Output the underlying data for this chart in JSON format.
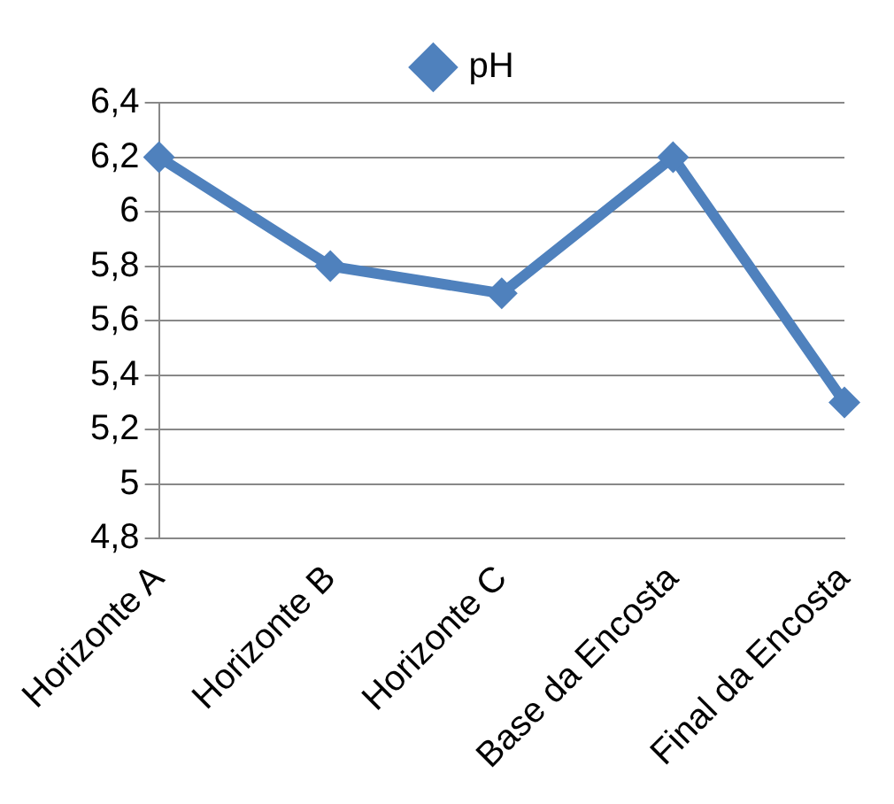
{
  "chart_data": {
    "type": "line",
    "categories": [
      "Horizonte A",
      "Horizonte B",
      "Horizonte C",
      "Base da Encosta",
      "Final da Encosta"
    ],
    "series": [
      {
        "name": "pH",
        "color": "#4f81bd",
        "values": [
          6.2,
          5.8,
          5.7,
          6.2,
          5.3
        ]
      }
    ],
    "ylim": [
      4.8,
      6.4
    ],
    "yticks": [
      {
        "value": 4.8,
        "label": "4,8"
      },
      5,
      {
        "value": 5.2,
        "label": "5,2"
      },
      {
        "value": 5.4,
        "label": "5,4"
      },
      {
        "value": 5.6,
        "label": "5,6"
      },
      {
        "value": 5.8,
        "label": "5,8"
      },
      6,
      {
        "value": 6.2,
        "label": "6,2"
      },
      {
        "value": 6.4,
        "label": "6,4"
      }
    ],
    "grid": "y",
    "legend": "top",
    "marker": "diamond",
    "line_style": "solid"
  }
}
